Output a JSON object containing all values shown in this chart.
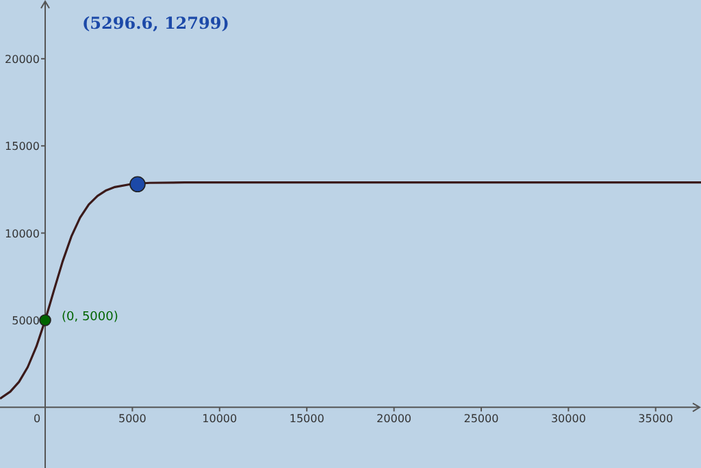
{
  "chart_data": {
    "type": "line",
    "xlim": [
      -2590,
      37600
    ],
    "ylim": [
      -3480,
      23370
    ],
    "xticks": [
      0,
      5000,
      10000,
      15000,
      20000,
      25000,
      30000,
      35000
    ],
    "yticks": [
      5000,
      10000,
      15000,
      20000
    ],
    "grid": false,
    "series": [
      {
        "color": "#3b1a1a",
        "x": [
          -2590,
          -2000,
          -1500,
          -1000,
          -500,
          0,
          500,
          1000,
          1500,
          2000,
          2500,
          3000,
          3500,
          4000,
          5000,
          6000,
          8000,
          10000,
          37600
        ],
        "values": [
          500,
          900,
          1460,
          2310,
          3500,
          5000,
          6700,
          8370,
          9800,
          10880,
          11640,
          12130,
          12450,
          12640,
          12820,
          12880,
          12900,
          12900,
          12900
        ]
      },
      {
        "type": "scatter",
        "color": "#006400",
        "marker": "circle",
        "x": [
          0
        ],
        "values": [
          5000
        ]
      },
      {
        "type": "scatter",
        "color": "#1c49a8",
        "marker": "circle",
        "x": [
          5296.6
        ],
        "values": [
          12799
        ]
      }
    ],
    "annotations": [
      "(5296.6, 12799)",
      {
        "text": "(0, 5000)",
        "x": 0,
        "y": 5000
      }
    ]
  }
}
